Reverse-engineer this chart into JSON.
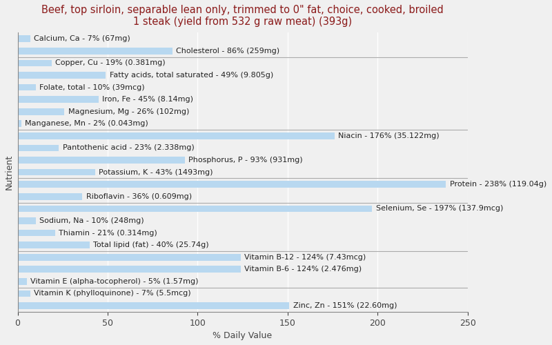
{
  "title": "Beef, top sirloin, separable lean only, trimmed to 0\" fat, choice, cooked, broiled\n1 steak (yield from 532 g raw meat) (393g)",
  "xlabel": "% Daily Value",
  "ylabel": "Nutrient",
  "nutrients": [
    "Calcium, Ca - 7% (67mg)",
    "Cholesterol - 86% (259mg)",
    "Copper, Cu - 19% (0.381mg)",
    "Fatty acids, total saturated - 49% (9.805g)",
    "Folate, total - 10% (39mcg)",
    "Iron, Fe - 45% (8.14mg)",
    "Magnesium, Mg - 26% (102mg)",
    "Manganese, Mn - 2% (0.043mg)",
    "Niacin - 176% (35.122mg)",
    "Pantothenic acid - 23% (2.338mg)",
    "Phosphorus, P - 93% (931mg)",
    "Potassium, K - 43% (1493mg)",
    "Protein - 238% (119.04g)",
    "Riboflavin - 36% (0.609mg)",
    "Selenium, Se - 197% (137.9mcg)",
    "Sodium, Na - 10% (248mg)",
    "Thiamin - 21% (0.314mg)",
    "Total lipid (fat) - 40% (25.74g)",
    "Vitamin B-12 - 124% (7.43mcg)",
    "Vitamin B-6 - 124% (2.476mg)",
    "Vitamin E (alpha-tocopherol) - 5% (1.57mg)",
    "Vitamin K (phylloquinone) - 7% (5.5mcg)",
    "Zinc, Zn - 151% (22.60mg)"
  ],
  "values": [
    7,
    86,
    19,
    49,
    10,
    45,
    26,
    2,
    176,
    23,
    93,
    43,
    238,
    36,
    197,
    10,
    21,
    40,
    124,
    124,
    5,
    7,
    151
  ],
  "bar_color": "#b8d8f0",
  "background_color": "#f0f0f0",
  "title_color": "#8b1a1a",
  "xlim": [
    0,
    250
  ],
  "xticks": [
    0,
    50,
    100,
    150,
    200,
    250
  ],
  "title_fontsize": 10.5,
  "label_fontsize": 8,
  "tick_fontsize": 9,
  "group_boundaries_from_top": [
    1.5,
    7.5,
    11.5,
    13.5,
    17.5,
    20.5
  ]
}
